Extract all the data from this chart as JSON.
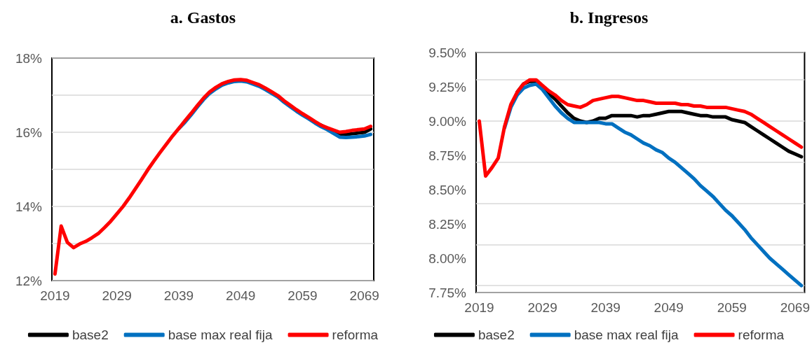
{
  "chart_data": [
    {
      "type": "line",
      "title": "a. Gastos",
      "x": [
        2019,
        2020,
        2021,
        2022,
        2023,
        2024,
        2025,
        2026,
        2027,
        2028,
        2029,
        2030,
        2031,
        2032,
        2033,
        2034,
        2035,
        2036,
        2037,
        2038,
        2039,
        2040,
        2041,
        2042,
        2043,
        2044,
        2045,
        2046,
        2047,
        2048,
        2049,
        2050,
        2051,
        2052,
        2053,
        2054,
        2055,
        2056,
        2057,
        2058,
        2059,
        2060,
        2061,
        2062,
        2063,
        2064,
        2065,
        2066,
        2067,
        2068,
        2069,
        2070
      ],
      "xlim": [
        2018.5,
        2070.5
      ],
      "xticks": [
        2019,
        2029,
        2039,
        2049,
        2059,
        2069
      ],
      "ylim": [
        12,
        18
      ],
      "yticks": [
        {
          "value": 12,
          "label": "12%"
        },
        {
          "value": 14,
          "label": "14%"
        },
        {
          "value": 16,
          "label": "16%"
        },
        {
          "value": 18,
          "label": "18%"
        }
      ],
      "grid": "y",
      "legend": "bottom",
      "line_style": "solid",
      "marker": "none",
      "series": [
        {
          "name": "base2",
          "color": "#000000",
          "values": [
            null,
            null,
            null,
            null,
            null,
            null,
            null,
            null,
            null,
            null,
            null,
            null,
            null,
            null,
            null,
            null,
            null,
            null,
            null,
            null,
            null,
            null,
            null,
            null,
            null,
            null,
            null,
            null,
            null,
            null,
            null,
            null,
            null,
            null,
            null,
            null,
            null,
            null,
            null,
            null,
            null,
            null,
            null,
            16.19,
            16.1,
            16.02,
            15.94,
            15.94,
            15.96,
            15.98,
            16.0,
            16.09
          ]
        },
        {
          "name": "base max real fija",
          "color": "#0070c0",
          "values": [
            null,
            null,
            null,
            null,
            null,
            null,
            null,
            null,
            null,
            null,
            null,
            null,
            null,
            null,
            null,
            null,
            null,
            null,
            null,
            null,
            16.1,
            16.27,
            16.47,
            16.68,
            16.88,
            17.05,
            17.17,
            17.27,
            17.33,
            17.37,
            17.38,
            17.36,
            17.3,
            17.24,
            17.15,
            17.05,
            16.95,
            16.81,
            16.69,
            16.57,
            16.46,
            16.36,
            16.25,
            16.15,
            16.07,
            15.97,
            15.87,
            15.86,
            15.87,
            15.88,
            15.9,
            15.94
          ]
        },
        {
          "name": "reforma",
          "color": "#ff0000",
          "values": [
            12.18,
            13.47,
            13.03,
            12.89,
            12.99,
            13.06,
            13.16,
            13.27,
            13.43,
            13.6,
            13.8,
            14.0,
            14.23,
            14.48,
            14.73,
            14.99,
            15.23,
            15.46,
            15.68,
            15.9,
            16.1,
            16.31,
            16.51,
            16.72,
            16.92,
            17.09,
            17.21,
            17.31,
            17.37,
            17.41,
            17.42,
            17.4,
            17.34,
            17.28,
            17.19,
            17.09,
            16.99,
            16.85,
            16.73,
            16.61,
            16.5,
            16.4,
            16.29,
            16.19,
            16.12,
            16.06,
            16.0,
            16.02,
            16.05,
            16.07,
            16.09,
            16.16
          ]
        }
      ]
    },
    {
      "type": "line",
      "title": "b. Ingresos",
      "x": [
        2019,
        2020,
        2021,
        2022,
        2023,
        2024,
        2025,
        2026,
        2027,
        2028,
        2029,
        2030,
        2031,
        2032,
        2033,
        2034,
        2035,
        2036,
        2037,
        2038,
        2039,
        2040,
        2041,
        2042,
        2043,
        2044,
        2045,
        2046,
        2047,
        2048,
        2049,
        2050,
        2051,
        2052,
        2053,
        2054,
        2055,
        2056,
        2057,
        2058,
        2059,
        2060,
        2061,
        2062,
        2063,
        2064,
        2065,
        2066,
        2067,
        2068,
        2069,
        2070
      ],
      "xlim": [
        2018.5,
        2070.5
      ],
      "xticks": [
        2019,
        2029,
        2039,
        2049,
        2059,
        2069
      ],
      "ylim": [
        7.75,
        9.5
      ],
      "yticks": [
        {
          "value": 7.75,
          "label": "7.75%"
        },
        {
          "value": 8,
          "label": "8.00%"
        },
        {
          "value": 8.25,
          "label": "8.25%"
        },
        {
          "value": 8.5,
          "label": "8.50%"
        },
        {
          "value": 8.75,
          "label": "8.75%"
        },
        {
          "value": 9,
          "label": "9.00%"
        },
        {
          "value": 9.25,
          "label": "9.25%"
        },
        {
          "value": 9.5,
          "label": "9.50%"
        }
      ],
      "grid": "y",
      "legend": "bottom",
      "line_style": "solid",
      "marker": "none",
      "series": [
        {
          "name": "base2",
          "color": "#000000",
          "values": [
            null,
            null,
            null,
            null,
            null,
            null,
            9.21,
            9.27,
            9.29,
            9.29,
            9.25,
            9.2,
            9.16,
            9.11,
            9.06,
            9.02,
            9.0,
            8.99,
            9.0,
            9.02,
            9.02,
            9.04,
            9.04,
            9.04,
            9.04,
            9.03,
            9.04,
            9.04,
            9.05,
            9.06,
            9.07,
            9.07,
            9.07,
            9.06,
            9.05,
            9.04,
            9.04,
            9.03,
            9.03,
            9.03,
            9.01,
            9.0,
            8.99,
            8.96,
            8.93,
            8.9,
            8.87,
            8.84,
            8.81,
            8.78,
            8.76,
            8.74
          ]
        },
        {
          "name": "base max real fija",
          "color": "#0070c0",
          "values": [
            null,
            null,
            null,
            null,
            8.95,
            9.1,
            9.19,
            9.24,
            9.26,
            9.27,
            9.23,
            9.17,
            9.11,
            9.06,
            9.02,
            8.99,
            8.99,
            8.99,
            8.99,
            8.99,
            8.98,
            8.98,
            8.95,
            8.92,
            8.9,
            8.87,
            8.84,
            8.82,
            8.79,
            8.77,
            8.73,
            8.7,
            8.66,
            8.62,
            8.58,
            8.53,
            8.49,
            8.45,
            8.4,
            8.35,
            8.31,
            8.26,
            8.21,
            8.15,
            8.1,
            8.05,
            8.0,
            7.96,
            7.92,
            7.88,
            7.84,
            7.8
          ]
        },
        {
          "name": "reforma",
          "color": "#ff0000",
          "values": [
            9.0,
            8.6,
            8.66,
            8.73,
            8.96,
            9.12,
            9.21,
            9.27,
            9.3,
            9.3,
            9.26,
            9.22,
            9.19,
            9.15,
            9.12,
            9.11,
            9.1,
            9.12,
            9.15,
            9.16,
            9.17,
            9.18,
            9.18,
            9.17,
            9.16,
            9.15,
            9.15,
            9.14,
            9.13,
            9.13,
            9.13,
            9.13,
            9.12,
            9.12,
            9.11,
            9.11,
            9.1,
            9.1,
            9.1,
            9.1,
            9.09,
            9.08,
            9.07,
            9.05,
            9.02,
            8.99,
            8.96,
            8.93,
            8.9,
            8.87,
            8.84,
            8.81
          ]
        }
      ]
    }
  ]
}
